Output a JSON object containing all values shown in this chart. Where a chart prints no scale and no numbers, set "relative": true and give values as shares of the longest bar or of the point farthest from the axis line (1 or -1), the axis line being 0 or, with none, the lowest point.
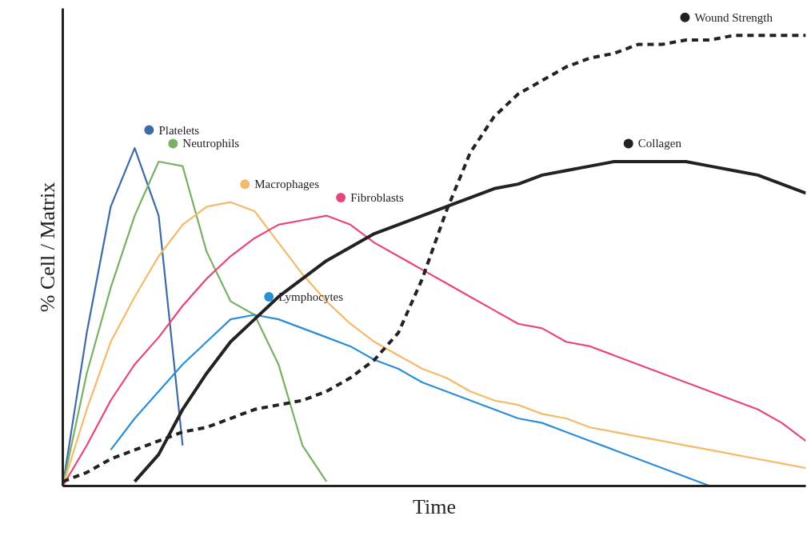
{
  "chart_data": {
    "type": "line",
    "relative": true,
    "xlabel": "Time",
    "ylabel": "% Cell / Matrix",
    "grid": false,
    "legend": "top",
    "categories": [
      null,
      null,
      null,
      null,
      null,
      null,
      null,
      null,
      null,
      null,
      null,
      null,
      null,
      null,
      null,
      null,
      null,
      null,
      null,
      null,
      null,
      null,
      null,
      null,
      null,
      null,
      null,
      null,
      null,
      null,
      null,
      null
    ],
    "series": [
      {
        "name": "Platelets",
        "color": "#3f6aa8",
        "values": [
          0,
          0.34,
          0.62,
          0.75,
          0.6,
          0.09,
          null,
          null,
          null,
          null,
          null,
          null,
          null,
          null,
          null,
          null,
          null,
          null,
          null,
          null,
          null,
          null,
          null,
          null,
          null,
          null,
          null,
          null,
          null,
          null,
          null,
          null
        ]
      },
      {
        "name": "Neutrophils",
        "color": "#79b064",
        "values": [
          0,
          0.25,
          0.44,
          0.6,
          0.72,
          0.71,
          0.52,
          0.41,
          0.38,
          0.27,
          0.09,
          0.01,
          null,
          null,
          null,
          null,
          null,
          null,
          null,
          null,
          null,
          null,
          null,
          null,
          null,
          null,
          null,
          null,
          null,
          null,
          null,
          null
        ]
      },
      {
        "name": "Macrophages",
        "color": "#f5b96a",
        "values": [
          0,
          0.17,
          0.32,
          0.42,
          0.51,
          0.58,
          0.62,
          0.63,
          0.61,
          0.54,
          0.47,
          0.41,
          0.36,
          0.32,
          0.29,
          0.26,
          0.24,
          0.21,
          0.19,
          0.18,
          0.16,
          0.15,
          0.13,
          0.12,
          0.11,
          0.1,
          0.09,
          0.08,
          0.07,
          0.06,
          0.05,
          0.04
        ]
      },
      {
        "name": "Fibroblasts",
        "color": "#e8457a",
        "values": [
          0,
          0.09,
          0.19,
          0.27,
          0.33,
          0.4,
          0.46,
          0.51,
          0.55,
          0.58,
          0.59,
          0.6,
          0.58,
          0.54,
          0.51,
          0.48,
          0.45,
          0.42,
          0.39,
          0.36,
          0.35,
          0.32,
          0.31,
          0.29,
          0.27,
          0.25,
          0.23,
          0.21,
          0.19,
          0.17,
          0.14,
          0.1
        ]
      },
      {
        "name": "Lymphocytes",
        "color": "#2b8fd6",
        "values": [
          null,
          null,
          0.08,
          0.15,
          0.21,
          0.27,
          0.32,
          0.37,
          0.38,
          0.37,
          0.35,
          0.33,
          0.31,
          0.28,
          0.26,
          0.23,
          0.21,
          0.19,
          0.17,
          0.15,
          0.14,
          0.12,
          0.1,
          0.08,
          0.06,
          0.04,
          0.02,
          0,
          null,
          null,
          null,
          null
        ]
      },
      {
        "name": "Collagen",
        "color": "#222222",
        "values": [
          null,
          null,
          null,
          0.01,
          0.07,
          0.17,
          0.25,
          0.32,
          0.37,
          0.42,
          0.46,
          0.5,
          0.53,
          0.56,
          0.58,
          0.6,
          0.62,
          0.64,
          0.66,
          0.67,
          0.69,
          0.7,
          0.71,
          0.72,
          0.72,
          0.72,
          0.72,
          0.71,
          0.7,
          0.69,
          0.67,
          0.65
        ]
      },
      {
        "name": "Wound Strength",
        "color": "#222222",
        "line_style": "dashed",
        "values": [
          0.01,
          0.03,
          0.06,
          0.08,
          0.1,
          0.12,
          0.13,
          0.15,
          0.17,
          0.18,
          0.19,
          0.21,
          0.24,
          0.28,
          0.34,
          0.46,
          0.61,
          0.74,
          0.82,
          0.87,
          0.9,
          0.93,
          0.95,
          0.96,
          0.98,
          0.98,
          0.99,
          0.99,
          1.0,
          1.0,
          1.0,
          1.0
        ]
      }
    ]
  }
}
